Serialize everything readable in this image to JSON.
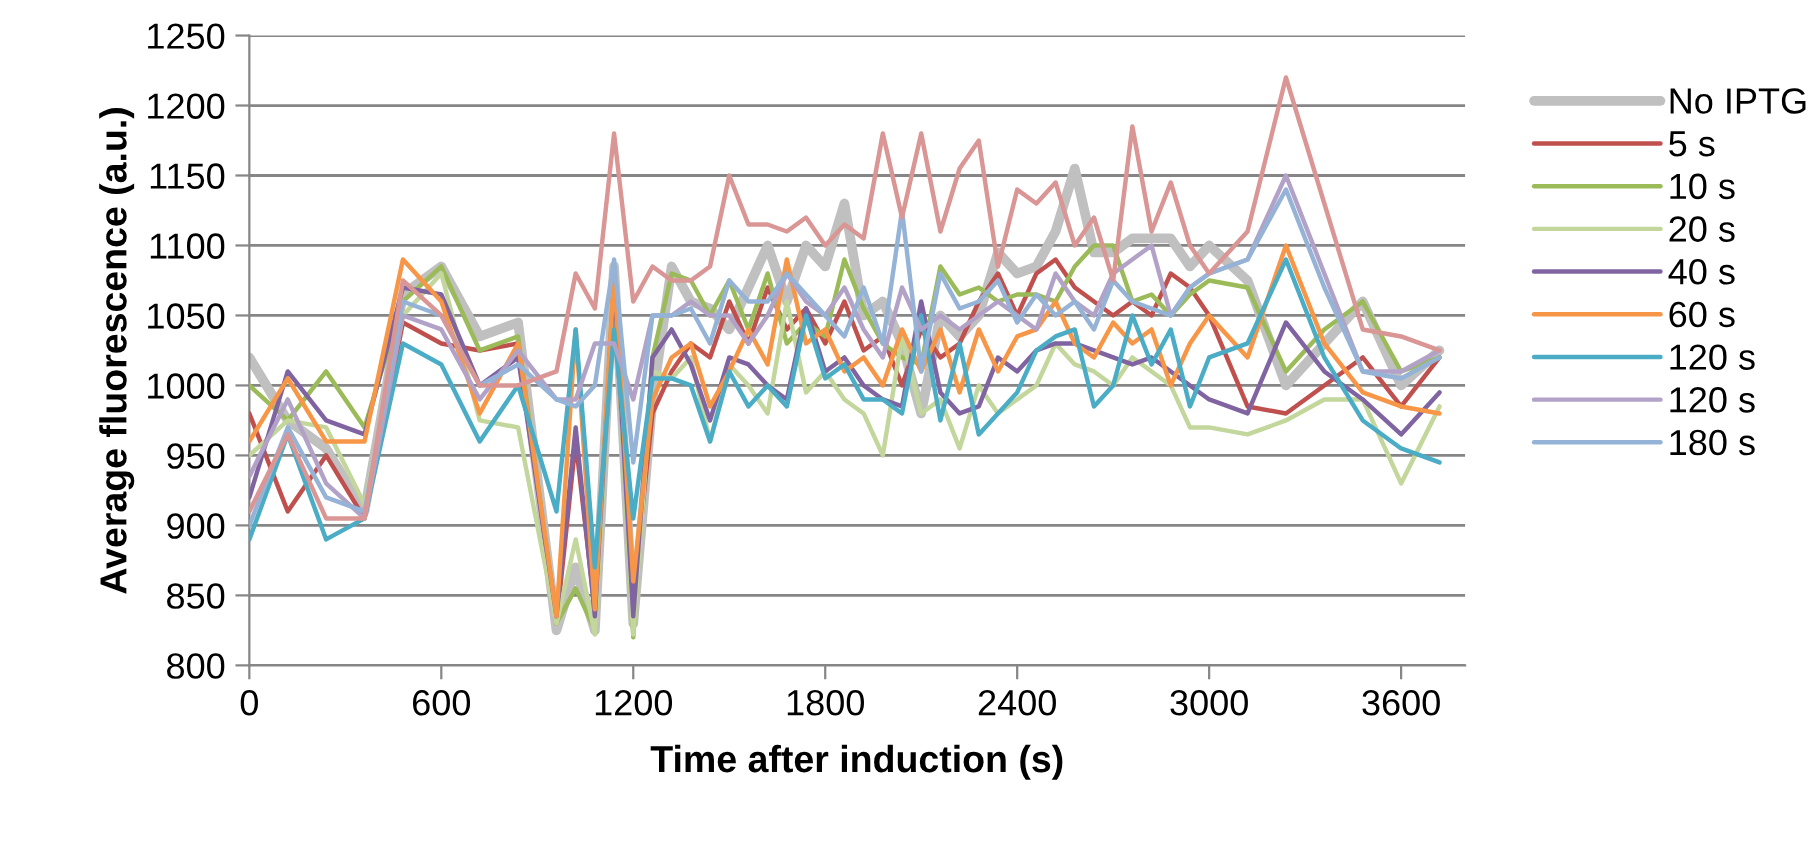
{
  "chart_data": {
    "type": "line",
    "xlabel": "Time after induction (s)",
    "ylabel": "Average fluorescence (a.u.)",
    "x": [
      0,
      120,
      240,
      360,
      480,
      600,
      720,
      840,
      960,
      1020,
      1080,
      1140,
      1200,
      1260,
      1320,
      1380,
      1440,
      1500,
      1560,
      1620,
      1680,
      1740,
      1800,
      1860,
      1920,
      1980,
      2040,
      2100,
      2160,
      2220,
      2280,
      2340,
      2400,
      2460,
      2520,
      2580,
      2640,
      2700,
      2760,
      2820,
      2880,
      2940,
      3000,
      3120,
      3240,
      3360,
      3480,
      3600,
      3720
    ],
    "xlim": [
      0,
      3800
    ],
    "xticks": [
      0,
      600,
      1200,
      1800,
      2400,
      3000,
      3600
    ],
    "ylim": [
      800,
      1250
    ],
    "yticks": [
      800,
      850,
      900,
      950,
      1000,
      1050,
      1100,
      1150,
      1200,
      1250
    ],
    "grid": "y",
    "legend": "right",
    "marker": "none",
    "line_style": "solid",
    "series": [
      {
        "name": "No IPTG",
        "color": "#c0c0c0",
        "values": [
          1020,
          975,
          955,
          910,
          1065,
          1085,
          1035,
          1045,
          825,
          870,
          825,
          1085,
          830,
          990,
          1085,
          1060,
          1055,
          1040,
          1070,
          1100,
          1060,
          1100,
          1085,
          1130,
          1050,
          1060,
          1030,
          980,
          1050,
          1035,
          1050,
          1095,
          1080,
          1085,
          1110,
          1155,
          1095,
          1095,
          1105,
          1105,
          1105,
          1085,
          1100,
          1075,
          1000,
          1030,
          1060,
          1000,
          1025
        ]
      },
      {
        "name": "5 s",
        "color": "#c0504d",
        "values": [
          980,
          910,
          950,
          905,
          1045,
          1030,
          1025,
          1030,
          830,
          960,
          840,
          1060,
          850,
          980,
          1010,
          1030,
          1020,
          1060,
          1030,
          1070,
          1040,
          1055,
          1030,
          1060,
          1025,
          1035,
          1000,
          1040,
          1020,
          1030,
          1060,
          1080,
          1050,
          1080,
          1090,
          1070,
          1060,
          1050,
          1060,
          1050,
          1080,
          1070,
          1050,
          985,
          980,
          1000,
          1020,
          985,
          1020
        ]
      },
      {
        "name": "10 s",
        "color": "#9bbb59",
        "values": [
          1000,
          975,
          1010,
          970,
          1060,
          1085,
          1025,
          1035,
          830,
          855,
          825,
          1080,
          820,
          1020,
          1080,
          1075,
          1050,
          1075,
          1040,
          1080,
          1030,
          1045,
          1035,
          1090,
          1055,
          1030,
          1020,
          1015,
          1085,
          1065,
          1070,
          1060,
          1065,
          1065,
          1060,
          1085,
          1100,
          1100,
          1060,
          1065,
          1050,
          1065,
          1075,
          1070,
          1010,
          1040,
          1060,
          1010,
          1020
        ]
      },
      {
        "name": "20 s",
        "color": "#c3d69b",
        "values": [
          950,
          975,
          970,
          915,
          1050,
          1080,
          975,
          970,
          830,
          890,
          822,
          1075,
          822,
          1010,
          1005,
          1020,
          960,
          1015,
          1000,
          980,
          1060,
          995,
          1010,
          990,
          980,
          950,
          1035,
          980,
          990,
          955,
          1000,
          980,
          990,
          1000,
          1030,
          1015,
          1010,
          1000,
          1020,
          1010,
          1000,
          970,
          970,
          965,
          975,
          990,
          990,
          930,
          985
        ]
      },
      {
        "name": "40 s",
        "color": "#8064a2",
        "values": [
          920,
          1010,
          975,
          965,
          1070,
          1065,
          1000,
          1020,
          835,
          970,
          835,
          1075,
          835,
          1020,
          1040,
          1015,
          975,
          1020,
          1015,
          1000,
          990,
          1055,
          1010,
          1020,
          1000,
          990,
          985,
          1060,
          995,
          980,
          985,
          1020,
          1010,
          1025,
          1030,
          1030,
          1025,
          1020,
          1015,
          1020,
          1010,
          1000,
          990,
          980,
          1045,
          1010,
          990,
          965,
          995
        ]
      },
      {
        "name": "60 s",
        "color": "#f79646",
        "values": [
          960,
          1005,
          960,
          960,
          1090,
          1060,
          980,
          1030,
          835,
          1040,
          840,
          1080,
          860,
          990,
          1020,
          1030,
          985,
          1010,
          1040,
          1015,
          1090,
          1030,
          1040,
          1010,
          1020,
          1000,
          1040,
          1010,
          1040,
          995,
          1040,
          1010,
          1035,
          1040,
          1060,
          1030,
          1020,
          1045,
          1030,
          1040,
          1000,
          1030,
          1050,
          1020,
          1100,
          1030,
          995,
          985,
          980
        ]
      },
      {
        "name": "120 s",
        "color": "#4bacc6",
        "values": [
          890,
          965,
          890,
          905,
          1030,
          1015,
          960,
          1000,
          910,
          1040,
          870,
          1040,
          905,
          1005,
          1005,
          1000,
          960,
          1010,
          985,
          1000,
          985,
          1050,
          1005,
          1015,
          990,
          990,
          980,
          1050,
          975,
          1030,
          965,
          980,
          995,
          1025,
          1035,
          1040,
          985,
          1000,
          1050,
          1015,
          1040,
          985,
          1020,
          1030,
          1090,
          1020,
          975,
          955,
          945
        ]
      },
      {
        "name": "120 s",
        "color": "#b3a2c7",
        "values": [
          935,
          990,
          930,
          905,
          1050,
          1040,
          990,
          1025,
          990,
          990,
          1030,
          1030,
          990,
          1050,
          1050,
          1060,
          1050,
          1050,
          1030,
          1050,
          1080,
          1060,
          1050,
          1070,
          1040,
          1020,
          1070,
          1040,
          1050,
          1040,
          1050,
          1060,
          1050,
          1040,
          1080,
          1060,
          1050,
          1080,
          1090,
          1100,
          1050,
          1070,
          1080,
          1090,
          1150,
          1080,
          1010,
          1010,
          1025
        ]
      },
      {
        "name": "180 s",
        "color": "#95b3d7",
        "values": [
          900,
          970,
          920,
          910,
          1060,
          1050,
          1000,
          1015,
          990,
          985,
          1000,
          1090,
          945,
          1050,
          1050,
          1055,
          1030,
          1075,
          1060,
          1060,
          1080,
          1065,
          1050,
          1035,
          1070,
          1030,
          1125,
          1010,
          1080,
          1055,
          1060,
          1075,
          1045,
          1065,
          1050,
          1060,
          1040,
          1075,
          1060,
          1055,
          1050,
          1070,
          1080,
          1090,
          1140,
          1070,
          1010,
          1005,
          1020
        ]
      },
      {
        "color": "#d99694",
        "values": [
          910,
          965,
          905,
          905,
          1075,
          1050,
          1000,
          1000,
          1010,
          1080,
          1055,
          1180,
          1060,
          1085,
          1075,
          1075,
          1085,
          1150,
          1115,
          1115,
          1110,
          1120,
          1100,
          1115,
          1105,
          1180,
          1120,
          1180,
          1110,
          1155,
          1175,
          1085,
          1140,
          1130,
          1145,
          1100,
          1120,
          1075,
          1185,
          1110,
          1145,
          1100,
          1080,
          1110,
          1220,
          1130,
          1040,
          1035,
          1025
        ]
      }
    ]
  }
}
